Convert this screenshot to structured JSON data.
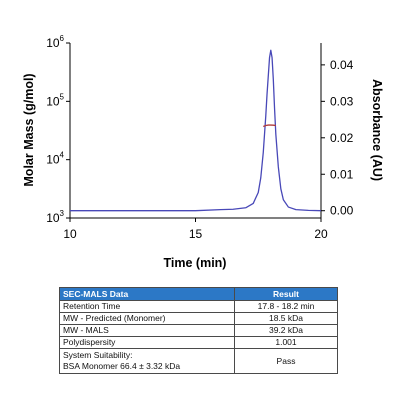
{
  "chart_data": {
    "type": "line",
    "xlabel": "Time (min)",
    "ylabel_left": "Molar Mass (g/mol)",
    "ylabel_right": "Absorbance (AU)",
    "xlim": [
      10,
      20
    ],
    "ylim_left": [
      1000,
      1000000
    ],
    "ylim_right": [
      -0.002,
      0.046
    ],
    "left_scale": "log",
    "x_ticks": [
      "10",
      "15",
      "20"
    ],
    "y_left_ticks": [
      {
        "base": "10",
        "exp": "3"
      },
      {
        "base": "10",
        "exp": "4"
      },
      {
        "base": "10",
        "exp": "5"
      },
      {
        "base": "10",
        "exp": "6"
      }
    ],
    "y_right_ticks": [
      "0.00",
      "0.01",
      "0.02",
      "0.03",
      "0.04"
    ],
    "grid": false,
    "series": [
      {
        "axis": "right",
        "color": "#4848b8",
        "x": [
          10,
          11,
          12,
          13,
          14,
          15,
          16,
          16.5,
          17,
          17.3,
          17.5,
          17.6,
          17.7,
          17.8,
          17.85,
          17.9,
          17.95,
          18.0,
          18.05,
          18.1,
          18.15,
          18.2,
          18.3,
          18.4,
          18.5,
          18.7,
          19.0,
          19.5,
          20
        ],
        "y": [
          0.0,
          0.0,
          0.0,
          0.0,
          0.0,
          0.0,
          0.0003,
          0.0004,
          0.0008,
          0.002,
          0.005,
          0.009,
          0.016,
          0.026,
          0.032,
          0.037,
          0.042,
          0.044,
          0.042,
          0.036,
          0.028,
          0.021,
          0.012,
          0.006,
          0.003,
          0.001,
          0.0003,
          0.0001,
          0.0
        ]
      },
      {
        "axis": "left",
        "color": "#b03a3a",
        "x": [
          17.7,
          17.8,
          17.9,
          18.0,
          18.1,
          18.2
        ],
        "y": [
          37000,
          38500,
          39200,
          39200,
          39000,
          38500
        ]
      }
    ]
  },
  "table": {
    "header": {
      "label": "SEC-MALS Data",
      "result": "Result"
    },
    "rows": [
      {
        "label": "Retention Time",
        "value": "17.8 - 18.2 min"
      },
      {
        "label": "MW - Predicted (Monomer)",
        "value": "18.5 kDa"
      },
      {
        "label": "MW - MALS",
        "value": "39.2 kDa"
      },
      {
        "label": "Polydispersity",
        "value": "1.001"
      }
    ],
    "suitability": {
      "label_line1": "System Suitability:",
      "label_line2": "BSA Monomer 66.4 ± 3.32 kDa",
      "value": "Pass"
    }
  }
}
